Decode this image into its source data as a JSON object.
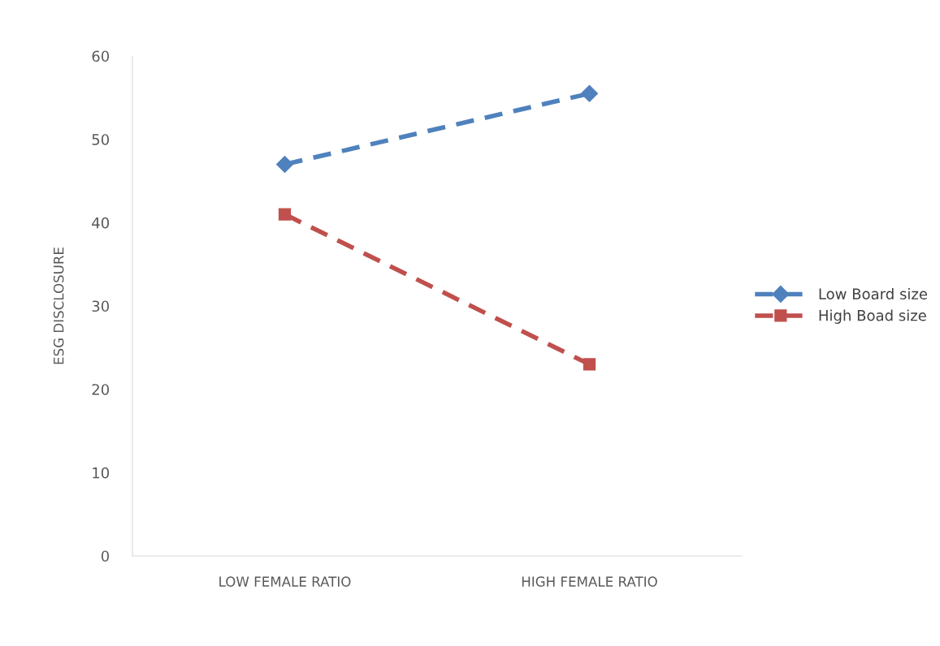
{
  "chart_data": {
    "type": "line",
    "ylabel": "ESG DISCLOSURE",
    "categories": [
      "LOW FEMALE RATIO",
      "HIGH FEMALE RATIO"
    ],
    "series": [
      {
        "name": "Low Board size",
        "color": "#4f81bd",
        "values": [
          47,
          55.5
        ],
        "marker": "diamond",
        "line_style": "dashed"
      },
      {
        "name": "High Boad size",
        "color": "#c0504d",
        "values": [
          41,
          23
        ],
        "marker": "square",
        "line_style": "dashed"
      }
    ],
    "ylim": [
      0,
      60
    ],
    "yticks": [
      0,
      10,
      20,
      30,
      40,
      50,
      60
    ],
    "grid": false,
    "legend": "right"
  }
}
